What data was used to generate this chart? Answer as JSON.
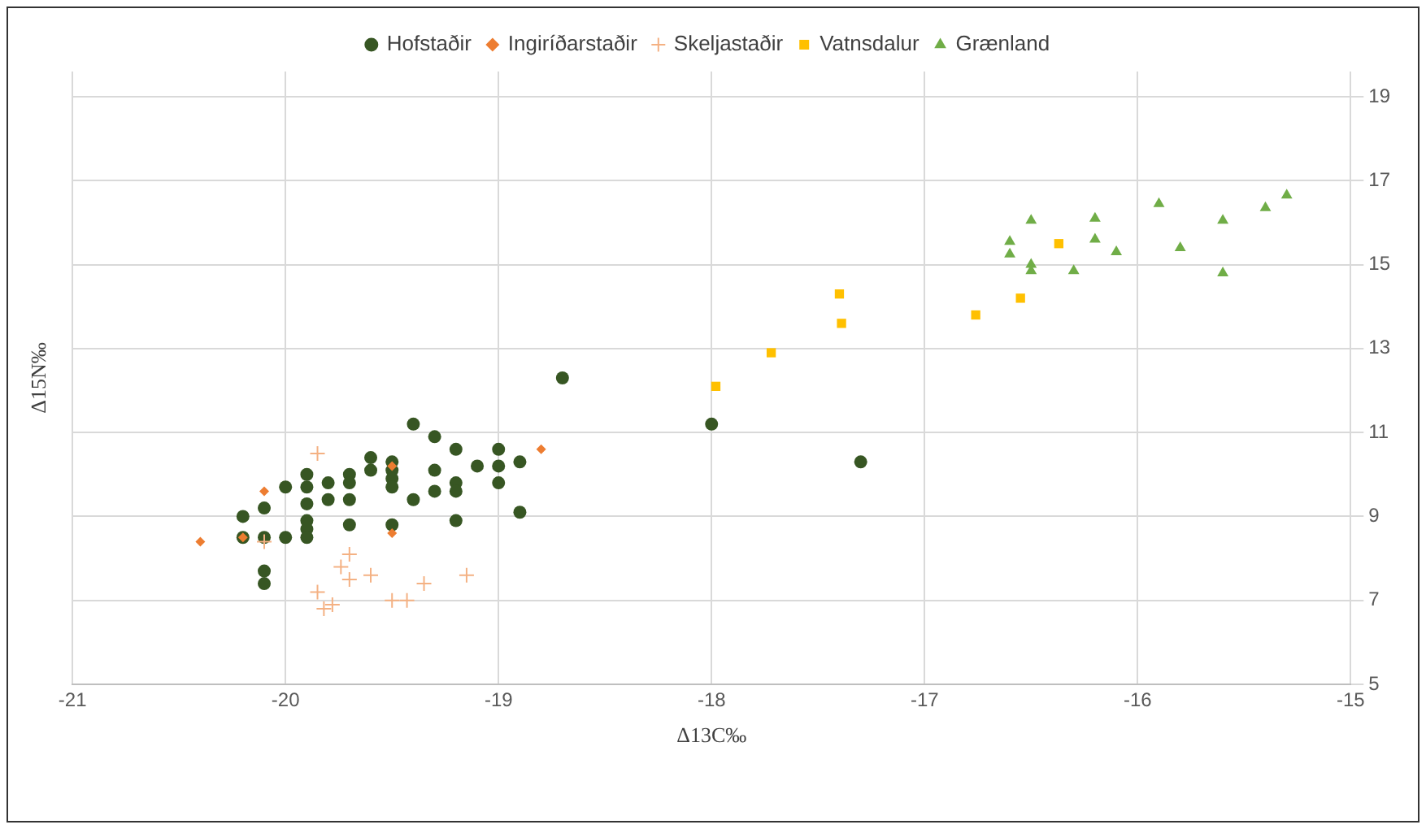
{
  "chart_data": {
    "type": "scatter",
    "xlabel": "Δ13C‰",
    "ylabel": "Δ15N‰",
    "xlim": [
      -21,
      -15
    ],
    "xticks": [
      -21,
      -20,
      -19,
      -18,
      -17,
      -16,
      -15
    ],
    "ylim": [
      5,
      19.6
    ],
    "yticks": [
      5,
      7,
      9,
      11,
      13,
      15,
      17,
      19
    ],
    "grid": true,
    "legend": "top",
    "series": [
      {
        "name": "Hofstaðir",
        "color": "#375623",
        "marker": "circle",
        "x": [
          -20.2,
          -20.2,
          -20.1,
          -20.1,
          -20.1,
          -20.1,
          -20,
          -20,
          -19.9,
          -19.9,
          -19.9,
          -19.9,
          -19.9,
          -19.9,
          -19.8,
          -19.8,
          -19.7,
          -19.7,
          -19.7,
          -19.7,
          -19.6,
          -19.6,
          -19.5,
          -19.5,
          -19.5,
          -19.5,
          -19.5,
          -19.4,
          -19.4,
          -19.3,
          -19.3,
          -19.3,
          -19.2,
          -19.2,
          -19.2,
          -19.2,
          -19.1,
          -19,
          -19,
          -19,
          -18.9,
          -18.9,
          -18.7,
          -18,
          -17.3
        ],
        "values": [
          9.0,
          8.5,
          9.2,
          8.5,
          7.7,
          7.4,
          9.7,
          8.5,
          10.0,
          9.7,
          9.3,
          8.9,
          8.7,
          8.5,
          9.8,
          9.4,
          10.0,
          9.8,
          9.4,
          8.8,
          10.4,
          10.1,
          10.3,
          10.1,
          9.9,
          9.7,
          8.8,
          11.2,
          9.4,
          10.9,
          10.1,
          9.6,
          10.6,
          9.8,
          9.6,
          8.9,
          10.2,
          10.6,
          10.2,
          9.8,
          10.3,
          9.1,
          12.3,
          11.2,
          10.3
        ]
      },
      {
        "name": "Ingiríðarstaðir",
        "color": "#ed7d31",
        "marker": "diamond",
        "x": [
          -20.4,
          -20.2,
          -20.1,
          -19.5,
          -19.5,
          -18.8
        ],
        "values": [
          8.4,
          8.5,
          9.6,
          10.2,
          8.6,
          10.6
        ]
      },
      {
        "name": "Skeljastaðir",
        "color": "#f4b183",
        "marker": "cross",
        "x": [
          -20.1,
          -19.85,
          -19.85,
          -19.82,
          -19.78,
          -19.74,
          -19.7,
          -19.7,
          -19.6,
          -19.5,
          -19.43,
          -19.35,
          -19.15
        ],
        "values": [
          8.4,
          10.5,
          7.2,
          6.8,
          6.9,
          7.8,
          8.1,
          7.5,
          7.6,
          7.0,
          7.0,
          7.4,
          7.6
        ]
      },
      {
        "name": "Vatnsdalur",
        "color": "#ffc000",
        "marker": "square",
        "x": [
          -17.98,
          -17.72,
          -17.4,
          -17.39,
          -16.76,
          -16.55,
          -16.37
        ],
        "values": [
          12.1,
          12.9,
          14.3,
          13.6,
          13.8,
          14.2,
          15.5
        ]
      },
      {
        "name": "Grænland",
        "color": "#70ad47",
        "marker": "triangle",
        "x": [
          -16.6,
          -16.6,
          -16.5,
          -16.5,
          -16.5,
          -16.3,
          -16.2,
          -16.2,
          -16.1,
          -15.9,
          -15.8,
          -15.6,
          -15.6,
          -15.4,
          -15.3
        ],
        "values": [
          15.55,
          15.25,
          16.05,
          15.0,
          14.85,
          14.85,
          16.1,
          15.6,
          15.3,
          16.45,
          15.4,
          16.05,
          14.8,
          16.35,
          16.65
        ]
      }
    ]
  }
}
